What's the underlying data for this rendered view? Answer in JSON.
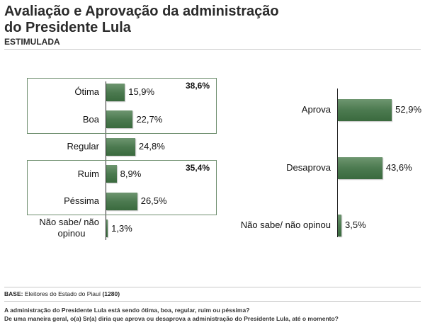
{
  "header": {
    "title_line1": "Avaliação e Aprovação da administração",
    "title_line2": "do Presidente Lula",
    "subtitle": "ESTIMULADA"
  },
  "footer": {
    "base_label": "BASE:",
    "base_text": "Eleitores do Estado do Piauí",
    "base_count": "(1280)",
    "question1": "A administração do Presidente Lula está sendo ótima, boa, regular, ruim ou péssima?",
    "question2": "De uma maneira geral, o(a) Sr(a) diria que aprova ou desaprova a administração do Presidente Lula, até o momento?"
  },
  "colors": {
    "bar": "#4c7a50",
    "box_border": "#6f8f6f"
  },
  "chart_data": [
    {
      "type": "bar",
      "orientation": "horizontal",
      "categories": [
        "Ótima",
        "Boa",
        "Regular",
        "Ruim",
        "Péssima",
        "Não sabe/ não opinou"
      ],
      "values": [
        15.9,
        22.7,
        24.8,
        8.9,
        26.5,
        1.3
      ],
      "value_labels": [
        "15,9%",
        "22,7%",
        "24,8%",
        "8,9%",
        "26,5%",
        "1,3%"
      ],
      "groups": [
        {
          "members": [
            "Ótima",
            "Boa"
          ],
          "total_label": "38,6%"
        },
        {
          "members": [
            "Ruim",
            "Péssima"
          ],
          "total_label": "35,4%"
        }
      ],
      "title": "",
      "xlabel": "",
      "ylabel": ""
    },
    {
      "type": "bar",
      "orientation": "horizontal",
      "categories": [
        "Aprova",
        "Desaprova",
        "Não sabe/ não opinou"
      ],
      "values": [
        52.9,
        43.6,
        3.5
      ],
      "value_labels": [
        "52,9%",
        "43,6%",
        "3,5%"
      ],
      "title": "",
      "xlabel": "",
      "ylabel": ""
    }
  ]
}
